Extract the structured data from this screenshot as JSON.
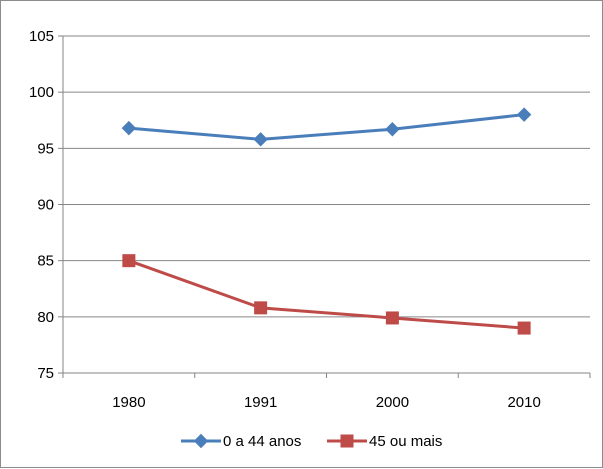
{
  "chart_data": {
    "type": "line",
    "categories": [
      "1980",
      "1991",
      "2000",
      "2010"
    ],
    "series": [
      {
        "name": "0 a 44 anos",
        "values": [
          96.8,
          95.8,
          96.7,
          98.0
        ],
        "color": "#4A7EBB",
        "marker": "diamond"
      },
      {
        "name": "45 ou mais",
        "values": [
          85.0,
          80.8,
          79.9,
          79.0
        ],
        "color": "#BE4B48",
        "marker": "square"
      }
    ],
    "ylim": [
      75,
      105
    ],
    "yticks": [
      75,
      80,
      85,
      90,
      95,
      100,
      105
    ],
    "title": "",
    "xlabel": "",
    "ylabel": "",
    "grid": "horizontal",
    "legend_position": "bottom"
  }
}
